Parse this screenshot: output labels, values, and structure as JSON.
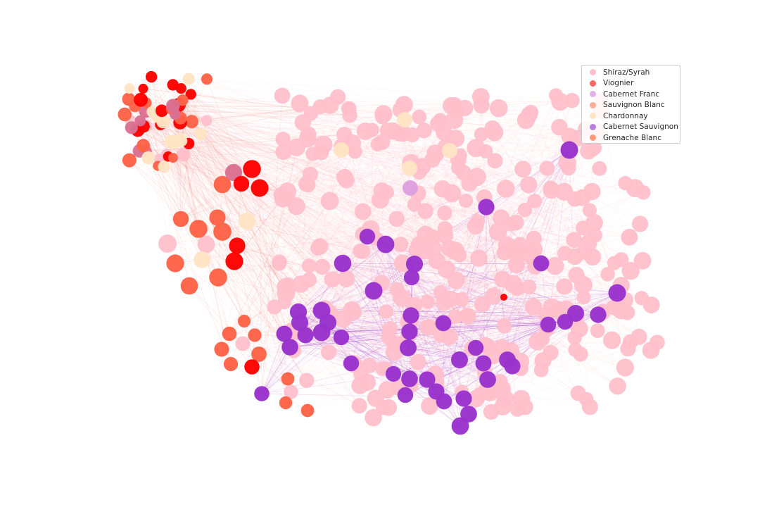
{
  "chart_data": {
    "type": "scatter",
    "subtype": "network-graph",
    "title": "",
    "xlabel": "",
    "ylabel": "",
    "axes_visible": false,
    "grid": false,
    "legend_placement": "top-right",
    "legend": [
      {
        "name": "Shiraz/Syrah",
        "color": "#ffc0cb"
      },
      {
        "name": "Viognier",
        "color": "#ff6666"
      },
      {
        "name": "Cabernet Franc",
        "color": "#e0b0e8"
      },
      {
        "name": "Sauvignon Blanc",
        "color": "#ffaa99"
      },
      {
        "name": "Chardonnay",
        "color": "#ffe4c4"
      },
      {
        "name": "Cabernet Sauvignon",
        "color": "#b57edc"
      },
      {
        "name": "Grenache Blanc",
        "color": "#ff9977"
      }
    ]
  }
}
